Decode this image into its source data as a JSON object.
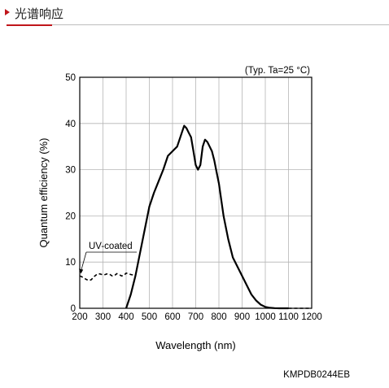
{
  "header": {
    "title": "光谱响应"
  },
  "chart_data": {
    "type": "line",
    "condition": "(Typ. Ta=25 °C)",
    "xlabel": "Wavelength (nm)",
    "ylabel": "Quantum efficiency (%)",
    "xlim": [
      200,
      1200
    ],
    "ylim": [
      0,
      50
    ],
    "xticks": [
      200,
      300,
      400,
      500,
      600,
      700,
      800,
      900,
      1000,
      1100,
      1200
    ],
    "yticks": [
      0,
      10,
      20,
      30,
      40,
      50
    ],
    "grid": true,
    "series": [
      {
        "style": "solid",
        "x": [
          400,
          420,
          440,
          460,
          480,
          500,
          520,
          540,
          560,
          580,
          600,
          620,
          640,
          650,
          660,
          670,
          680,
          690,
          700,
          710,
          720,
          730,
          740,
          750,
          760,
          770,
          780,
          790,
          800,
          820,
          840,
          860,
          880,
          900,
          920,
          940,
          960,
          980,
          1000,
          1020,
          1040,
          1060,
          1080,
          1100
        ],
        "y": [
          0,
          3,
          7,
          12,
          17,
          22,
          25,
          27.5,
          30,
          33,
          34,
          35,
          38,
          39.5,
          39,
          38,
          37,
          34,
          31,
          30,
          31,
          35,
          36.5,
          36,
          35,
          34,
          32,
          29.5,
          27,
          20,
          15,
          11,
          9,
          7,
          5,
          3,
          1.7,
          0.8,
          0.3,
          0.1,
          0.03,
          0,
          0,
          0
        ]
      },
      {
        "name": "UV-coated",
        "style": "dashed",
        "x": [
          200,
          210,
          220,
          230,
          240,
          250,
          260,
          270,
          280,
          290,
          300,
          310,
          320,
          330,
          340,
          350,
          360,
          370,
          380,
          390,
          400,
          410,
          420,
          430
        ],
        "y": [
          7,
          6.8,
          6.5,
          6.2,
          6,
          6.2,
          6.8,
          7.2,
          7.5,
          7.4,
          7.2,
          7.3,
          7.5,
          7.3,
          7,
          7.1,
          7.5,
          7.3,
          7,
          7.1,
          7.6,
          7.5,
          7.3,
          7.2
        ]
      },
      {
        "style": "dashed",
        "x": [
          1100,
          1120,
          1140,
          1160,
          1180,
          1200
        ],
        "y": [
          0,
          0,
          0,
          0,
          0,
          0
        ]
      }
    ],
    "annotations": [
      {
        "text": "UV-coated",
        "points_to": {
          "x": 205,
          "y": 8
        }
      }
    ]
  },
  "footer": {
    "code": "KMPDB0244EB"
  }
}
